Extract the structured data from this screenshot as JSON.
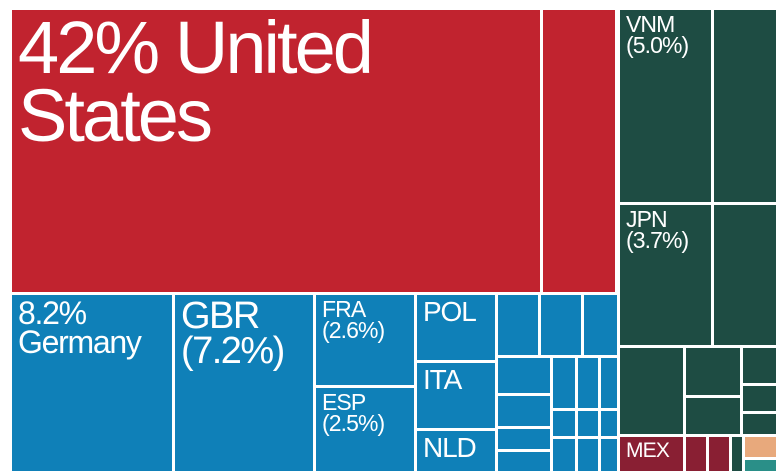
{
  "chart_data": {
    "type": "treemap",
    "items": [
      {
        "name": "United States",
        "value": 42,
        "value_label": "42%",
        "color": "#c1232f"
      },
      {
        "name": "Germany",
        "value": 8.2,
        "value_label": "8.2%",
        "color": "#0f80b8"
      },
      {
        "name": "GBR",
        "value": 7.2,
        "value_label": "(7.2%)",
        "color": "#0f80b8"
      },
      {
        "name": "FRA",
        "value": 2.6,
        "value_label": "(2.6%)",
        "color": "#0f80b8"
      },
      {
        "name": "ESP",
        "value": 2.5,
        "value_label": "(2.5%)",
        "color": "#0f80b8"
      },
      {
        "name": "POL",
        "value": 1.7,
        "color": "#0f80b8"
      },
      {
        "name": "ITA",
        "value": 1.6,
        "color": "#0f80b8"
      },
      {
        "name": "NLD",
        "value": 1.0,
        "color": "#0f80b8"
      },
      {
        "name": "VNM",
        "value": 5.0,
        "value_label": "(5.0%)",
        "color": "#1e4c43"
      },
      {
        "name": "JPN",
        "value": 3.7,
        "value_label": "(3.7%)",
        "color": "#1e4c43"
      },
      {
        "name": "MEX",
        "value": 0.6,
        "color": "#891f33"
      }
    ]
  }
}
